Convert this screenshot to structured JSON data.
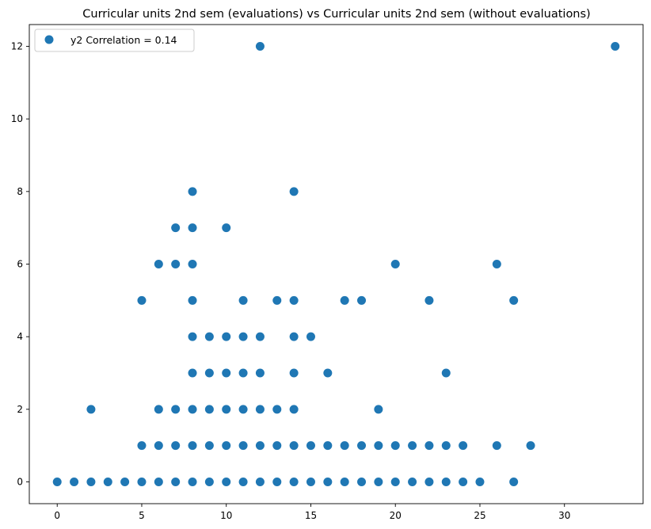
{
  "chart_data": {
    "type": "scatter",
    "title": "Curricular units 2nd sem (evaluations) vs Curricular units 2nd sem (without evaluations)",
    "xlabel": "",
    "ylabel": "",
    "xlim": [
      -1.65,
      34.65
    ],
    "ylim": [
      -0.6,
      12.6
    ],
    "xticks": [
      0,
      5,
      10,
      15,
      20,
      25,
      30
    ],
    "yticks": [
      0,
      2,
      4,
      6,
      8,
      10,
      12
    ],
    "grid": false,
    "legend_position": "top-left",
    "marker_color": "#1f77b4",
    "series": [
      {
        "name": "y2 Correlation = 0.14",
        "points": [
          [
            0,
            0
          ],
          [
            1,
            0
          ],
          [
            2,
            0
          ],
          [
            3,
            0
          ],
          [
            4,
            0
          ],
          [
            5,
            0
          ],
          [
            6,
            0
          ],
          [
            7,
            0
          ],
          [
            8,
            0
          ],
          [
            9,
            0
          ],
          [
            10,
            0
          ],
          [
            11,
            0
          ],
          [
            12,
            0
          ],
          [
            13,
            0
          ],
          [
            14,
            0
          ],
          [
            15,
            0
          ],
          [
            16,
            0
          ],
          [
            17,
            0
          ],
          [
            18,
            0
          ],
          [
            19,
            0
          ],
          [
            20,
            0
          ],
          [
            21,
            0
          ],
          [
            22,
            0
          ],
          [
            23,
            0
          ],
          [
            24,
            0
          ],
          [
            25,
            0
          ],
          [
            27,
            0
          ],
          [
            5,
            1
          ],
          [
            6,
            1
          ],
          [
            7,
            1
          ],
          [
            8,
            1
          ],
          [
            9,
            1
          ],
          [
            10,
            1
          ],
          [
            11,
            1
          ],
          [
            12,
            1
          ],
          [
            13,
            1
          ],
          [
            14,
            1
          ],
          [
            15,
            1
          ],
          [
            16,
            1
          ],
          [
            17,
            1
          ],
          [
            18,
            1
          ],
          [
            19,
            1
          ],
          [
            20,
            1
          ],
          [
            21,
            1
          ],
          [
            22,
            1
          ],
          [
            23,
            1
          ],
          [
            24,
            1
          ],
          [
            26,
            1
          ],
          [
            28,
            1
          ],
          [
            2,
            2
          ],
          [
            6,
            2
          ],
          [
            7,
            2
          ],
          [
            8,
            2
          ],
          [
            9,
            2
          ],
          [
            10,
            2
          ],
          [
            11,
            2
          ],
          [
            12,
            2
          ],
          [
            13,
            2
          ],
          [
            14,
            2
          ],
          [
            19,
            2
          ],
          [
            8,
            3
          ],
          [
            9,
            3
          ],
          [
            10,
            3
          ],
          [
            11,
            3
          ],
          [
            12,
            3
          ],
          [
            14,
            3
          ],
          [
            16,
            3
          ],
          [
            23,
            3
          ],
          [
            8,
            4
          ],
          [
            9,
            4
          ],
          [
            10,
            4
          ],
          [
            11,
            4
          ],
          [
            12,
            4
          ],
          [
            14,
            4
          ],
          [
            15,
            4
          ],
          [
            5,
            5
          ],
          [
            8,
            5
          ],
          [
            11,
            5
          ],
          [
            13,
            5
          ],
          [
            14,
            5
          ],
          [
            17,
            5
          ],
          [
            18,
            5
          ],
          [
            22,
            5
          ],
          [
            27,
            5
          ],
          [
            6,
            6
          ],
          [
            7,
            6
          ],
          [
            8,
            6
          ],
          [
            20,
            6
          ],
          [
            26,
            6
          ],
          [
            7,
            7
          ],
          [
            8,
            7
          ],
          [
            10,
            7
          ],
          [
            8,
            8
          ],
          [
            14,
            8
          ],
          [
            12,
            12
          ],
          [
            33,
            12
          ]
        ]
      }
    ]
  }
}
